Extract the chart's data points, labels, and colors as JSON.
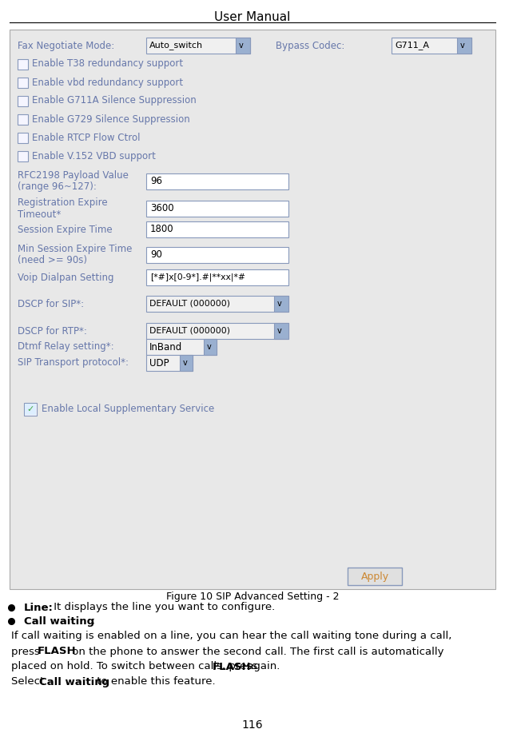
{
  "title": "User Manual",
  "figure_caption": "Figure 10 SIP Advanced Setting - 2",
  "page_number": "116",
  "bg_color": "#e8e8e8",
  "white": "#ffffff",
  "border_color": "#8899bb",
  "label_color": "#6677aa",
  "checkbox_color": "#8899bb",
  "dropdown_bg": "#cccccc",
  "row1_label": "Fax Negotiate Mode:",
  "row1_value": "Auto_switch",
  "row1_label2": "Bypass Codec:",
  "row1_value2": "G711_A",
  "checkboxes": [
    "Enable T38 redundancy support",
    "Enable vbd redundancy support",
    "Enable G711A Silence Suppression",
    "Enable G729 Silence Suppression",
    "Enable RTCP Flow Ctrol",
    "Enable V.152 VBD support"
  ],
  "dscp_sip_label": "DSCP for SIP*:",
  "dscp_sip_value": "DEFAULT (000000)",
  "dscp_rtp_label": "DSCP for RTP*:",
  "dscp_rtp_value": "DEFAULT (000000)",
  "dtmf_label": "Dtmf Relay setting*:",
  "dtmf_value": "InBand",
  "sip_transport_label": "SIP Transport protocol*:",
  "sip_transport_value": "UDP",
  "enable_local_label": "Enable Local Supplementary Service",
  "apply_btn": "Apply",
  "check_color": "#44aa44",
  "apply_text_color": "#cc8833"
}
